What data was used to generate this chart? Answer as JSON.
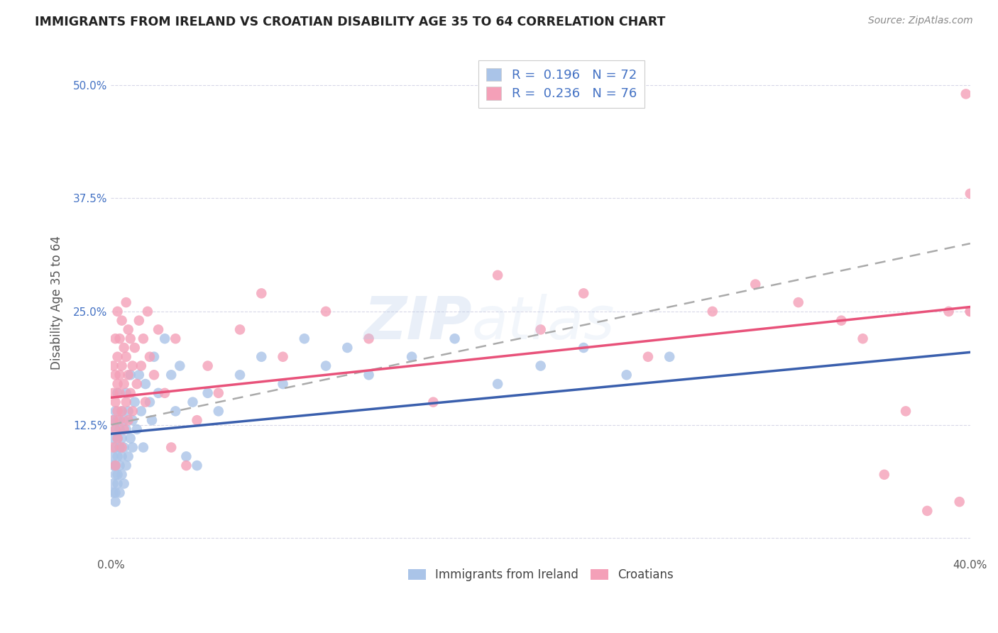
{
  "title": "IMMIGRANTS FROM IRELAND VS CROATIAN DISABILITY AGE 35 TO 64 CORRELATION CHART",
  "source": "Source: ZipAtlas.com",
  "ylabel": "Disability Age 35 to 64",
  "xlim": [
    0.0,
    0.4
  ],
  "ylim": [
    -0.02,
    0.54
  ],
  "R_ireland": 0.196,
  "N_ireland": 72,
  "R_croatian": 0.236,
  "N_croatian": 76,
  "ireland_color": "#aac4e8",
  "croatian_color": "#f4a0b8",
  "ireland_line_color": "#3a5fad",
  "croatian_line_color": "#e8527a",
  "trendline_dashed_color": "#aaaaaa",
  "legend_text_color": "#4472c4",
  "title_color": "#222222",
  "source_color": "#888888",
  "grid_color": "#d8d8e8",
  "ylabel_color": "#555555",
  "tick_color": "#555555",
  "ytick_color": "#4472c4",
  "watermark": "ZIPatlas",
  "ireland_line_x0": 0.0,
  "ireland_line_y0": 0.115,
  "ireland_line_x1": 0.4,
  "ireland_line_y1": 0.205,
  "croatian_line_x0": 0.0,
  "croatian_line_y0": 0.155,
  "croatian_line_x1": 0.4,
  "croatian_line_y1": 0.255,
  "dashed_line_x0": 0.0,
  "dashed_line_y0": 0.125,
  "dashed_line_x1": 0.4,
  "dashed_line_y1": 0.325,
  "ireland_x": [
    0.001,
    0.001,
    0.001,
    0.001,
    0.001,
    0.001,
    0.002,
    0.002,
    0.002,
    0.002,
    0.002,
    0.002,
    0.002,
    0.003,
    0.003,
    0.003,
    0.003,
    0.003,
    0.003,
    0.004,
    0.004,
    0.004,
    0.004,
    0.005,
    0.005,
    0.005,
    0.005,
    0.006,
    0.006,
    0.006,
    0.007,
    0.007,
    0.007,
    0.008,
    0.008,
    0.009,
    0.009,
    0.01,
    0.01,
    0.011,
    0.012,
    0.013,
    0.014,
    0.015,
    0.016,
    0.018,
    0.019,
    0.02,
    0.022,
    0.025,
    0.028,
    0.03,
    0.032,
    0.035,
    0.038,
    0.04,
    0.045,
    0.05,
    0.06,
    0.07,
    0.08,
    0.09,
    0.1,
    0.11,
    0.12,
    0.14,
    0.16,
    0.18,
    0.2,
    0.22,
    0.24,
    0.26
  ],
  "ireland_y": [
    0.06,
    0.09,
    0.11,
    0.13,
    0.05,
    0.08,
    0.04,
    0.07,
    0.1,
    0.12,
    0.05,
    0.14,
    0.08,
    0.06,
    0.09,
    0.11,
    0.13,
    0.07,
    0.16,
    0.05,
    0.08,
    0.12,
    0.1,
    0.07,
    0.11,
    0.14,
    0.09,
    0.06,
    0.13,
    0.1,
    0.08,
    0.16,
    0.12,
    0.09,
    0.14,
    0.11,
    0.18,
    0.13,
    0.1,
    0.15,
    0.12,
    0.18,
    0.14,
    0.1,
    0.17,
    0.15,
    0.13,
    0.2,
    0.16,
    0.22,
    0.18,
    0.14,
    0.19,
    0.09,
    0.15,
    0.08,
    0.16,
    0.14,
    0.18,
    0.2,
    0.17,
    0.22,
    0.19,
    0.21,
    0.18,
    0.2,
    0.22,
    0.17,
    0.19,
    0.21,
    0.18,
    0.2
  ],
  "croatian_x": [
    0.001,
    0.001,
    0.001,
    0.001,
    0.002,
    0.002,
    0.002,
    0.002,
    0.002,
    0.003,
    0.003,
    0.003,
    0.003,
    0.003,
    0.004,
    0.004,
    0.004,
    0.004,
    0.005,
    0.005,
    0.005,
    0.005,
    0.006,
    0.006,
    0.006,
    0.007,
    0.007,
    0.007,
    0.008,
    0.008,
    0.008,
    0.009,
    0.009,
    0.01,
    0.01,
    0.011,
    0.012,
    0.013,
    0.014,
    0.015,
    0.016,
    0.017,
    0.018,
    0.02,
    0.022,
    0.025,
    0.028,
    0.03,
    0.035,
    0.04,
    0.045,
    0.05,
    0.06,
    0.07,
    0.08,
    0.1,
    0.12,
    0.15,
    0.18,
    0.2,
    0.22,
    0.25,
    0.28,
    0.3,
    0.32,
    0.34,
    0.35,
    0.36,
    0.37,
    0.38,
    0.39,
    0.395,
    0.398,
    0.4,
    0.4,
    0.4
  ],
  "croatian_y": [
    0.13,
    0.16,
    0.1,
    0.19,
    0.12,
    0.15,
    0.18,
    0.08,
    0.22,
    0.14,
    0.17,
    0.11,
    0.2,
    0.25,
    0.13,
    0.16,
    0.22,
    0.18,
    0.1,
    0.14,
    0.19,
    0.24,
    0.12,
    0.17,
    0.21,
    0.15,
    0.2,
    0.26,
    0.13,
    0.18,
    0.23,
    0.16,
    0.22,
    0.14,
    0.19,
    0.21,
    0.17,
    0.24,
    0.19,
    0.22,
    0.15,
    0.25,
    0.2,
    0.18,
    0.23,
    0.16,
    0.1,
    0.22,
    0.08,
    0.13,
    0.19,
    0.16,
    0.23,
    0.27,
    0.2,
    0.25,
    0.22,
    0.15,
    0.29,
    0.23,
    0.27,
    0.2,
    0.25,
    0.28,
    0.26,
    0.24,
    0.22,
    0.07,
    0.14,
    0.03,
    0.25,
    0.04,
    0.49,
    0.25,
    0.25,
    0.38
  ]
}
